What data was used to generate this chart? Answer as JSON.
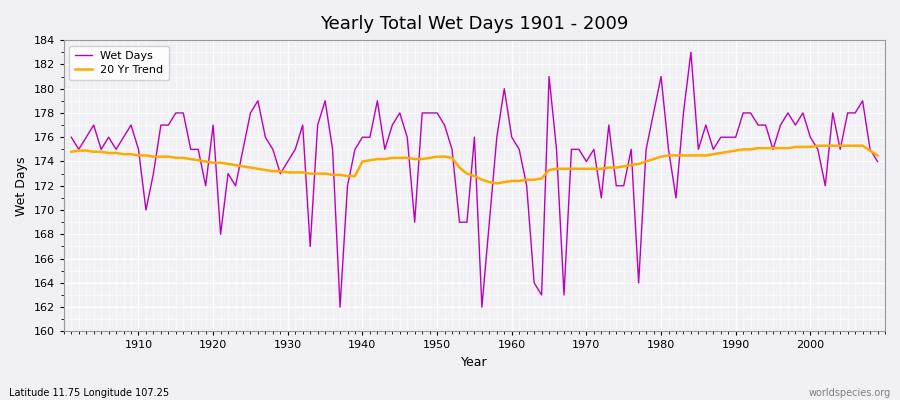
{
  "title": "Yearly Total Wet Days 1901 - 2009",
  "xlabel": "Year",
  "ylabel": "Wet Days",
  "bottom_left_label": "Latitude 11.75 Longitude 107.25",
  "bottom_right_label": "worldspecies.org",
  "ylim": [
    160,
    184
  ],
  "background_color": "#f0f0f5",
  "wet_days_color": "#bb00bb",
  "trend_color": "#ffaa00",
  "years": [
    1901,
    1902,
    1903,
    1904,
    1905,
    1906,
    1907,
    1908,
    1909,
    1910,
    1911,
    1912,
    1913,
    1914,
    1915,
    1916,
    1917,
    1918,
    1919,
    1920,
    1921,
    1922,
    1923,
    1924,
    1925,
    1926,
    1927,
    1928,
    1929,
    1930,
    1931,
    1932,
    1933,
    1934,
    1935,
    1936,
    1937,
    1938,
    1939,
    1940,
    1941,
    1942,
    1943,
    1944,
    1945,
    1946,
    1947,
    1948,
    1949,
    1950,
    1951,
    1952,
    1953,
    1954,
    1955,
    1956,
    1957,
    1958,
    1959,
    1960,
    1961,
    1962,
    1963,
    1964,
    1965,
    1966,
    1967,
    1968,
    1969,
    1970,
    1971,
    1972,
    1973,
    1974,
    1975,
    1976,
    1977,
    1978,
    1979,
    1980,
    1981,
    1982,
    1983,
    1984,
    1985,
    1986,
    1987,
    1988,
    1989,
    1990,
    1991,
    1992,
    1993,
    1994,
    1995,
    1996,
    1997,
    1998,
    1999,
    2000,
    2001,
    2002,
    2003,
    2004,
    2005,
    2006,
    2007,
    2008,
    2009
  ],
  "wet_days": [
    176,
    175,
    176,
    177,
    175,
    176,
    175,
    176,
    177,
    175,
    170,
    173,
    177,
    177,
    178,
    178,
    175,
    175,
    172,
    177,
    168,
    173,
    172,
    175,
    178,
    179,
    176,
    175,
    173,
    174,
    175,
    177,
    167,
    177,
    179,
    175,
    162,
    172,
    175,
    176,
    176,
    179,
    175,
    177,
    178,
    176,
    169,
    178,
    178,
    178,
    177,
    175,
    169,
    169,
    176,
    162,
    169,
    176,
    180,
    176,
    175,
    172,
    164,
    163,
    181,
    175,
    163,
    175,
    175,
    174,
    175,
    171,
    177,
    172,
    172,
    175,
    164,
    175,
    178,
    181,
    175,
    171,
    178,
    183,
    175,
    177,
    175,
    176,
    176,
    176,
    178,
    178,
    177,
    177,
    175,
    177,
    178,
    177,
    178,
    176,
    175,
    172,
    178,
    175,
    178,
    178,
    179,
    175,
    174
  ],
  "trend_values": [
    174.8,
    174.9,
    174.9,
    174.8,
    174.8,
    174.7,
    174.7,
    174.6,
    174.6,
    174.5,
    174.5,
    174.4,
    174.4,
    174.4,
    174.3,
    174.3,
    174.2,
    174.1,
    174.0,
    173.9,
    173.9,
    173.8,
    173.7,
    173.6,
    173.5,
    173.4,
    173.3,
    173.2,
    173.2,
    173.1,
    173.1,
    173.1,
    173.0,
    173.0,
    173.0,
    172.9,
    172.9,
    172.8,
    172.8,
    174.0,
    174.1,
    174.2,
    174.2,
    174.3,
    174.3,
    174.3,
    174.2,
    174.2,
    174.3,
    174.4,
    174.4,
    174.3,
    173.5,
    173.0,
    172.8,
    172.5,
    172.3,
    172.2,
    172.3,
    172.4,
    172.4,
    172.5,
    172.5,
    172.6,
    173.3,
    173.4,
    173.4,
    173.4,
    173.4,
    173.4,
    173.4,
    173.4,
    173.5,
    173.5,
    173.6,
    173.7,
    173.8,
    174.0,
    174.2,
    174.4,
    174.5,
    174.5,
    174.5,
    174.5,
    174.5,
    174.5,
    174.6,
    174.7,
    174.8,
    174.9,
    175.0,
    175.0,
    175.1,
    175.1,
    175.1,
    175.1,
    175.1,
    175.2,
    175.2,
    175.2,
    175.3,
    175.3,
    175.3,
    175.3,
    175.3,
    175.3,
    175.3,
    174.9,
    174.5
  ]
}
